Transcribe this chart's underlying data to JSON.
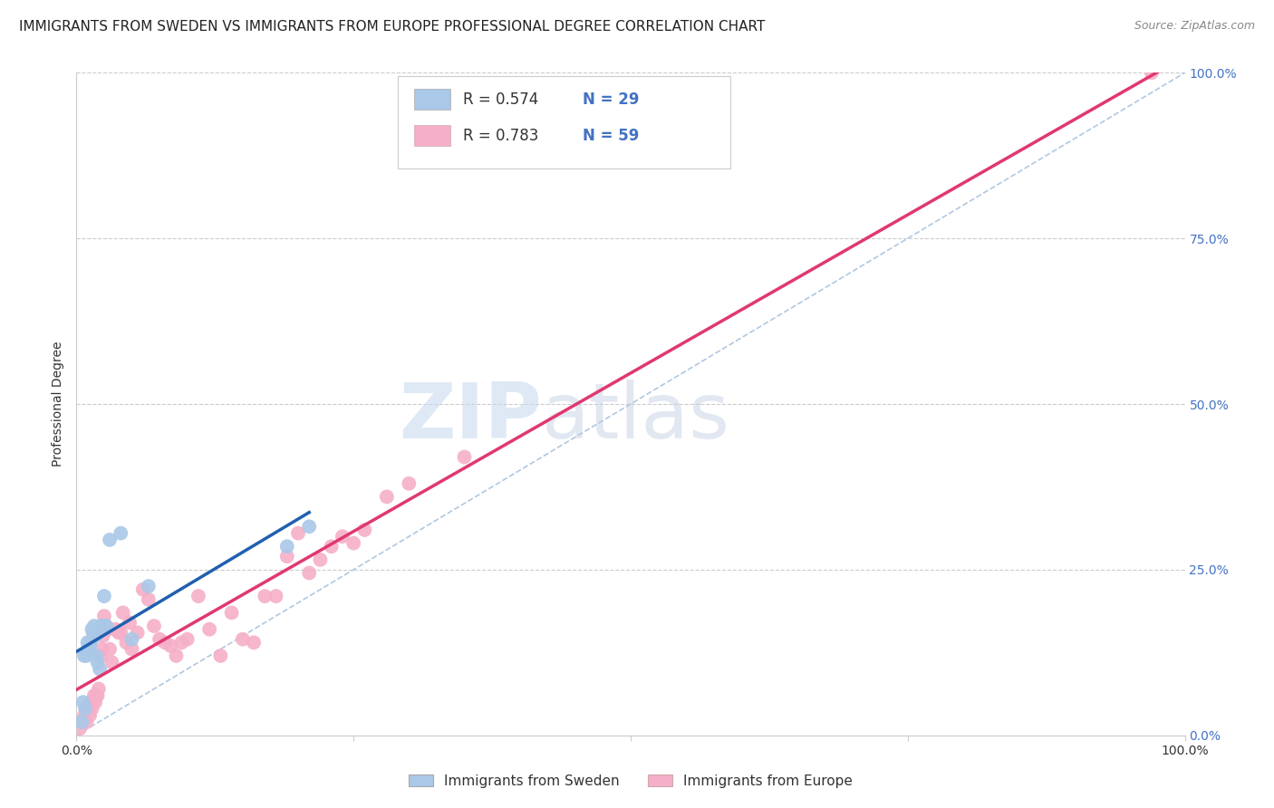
{
  "title": "IMMIGRANTS FROM SWEDEN VS IMMIGRANTS FROM EUROPE PROFESSIONAL DEGREE CORRELATION CHART",
  "source": "Source: ZipAtlas.com",
  "ylabel": "Professional Degree",
  "xlim": [
    0,
    1
  ],
  "ylim": [
    0,
    1
  ],
  "ytick_labels": [
    "0.0%",
    "25.0%",
    "50.0%",
    "75.0%",
    "100.0%"
  ],
  "ytick_positions": [
    0,
    0.25,
    0.5,
    0.75,
    1.0
  ],
  "xtick_positions": [
    0,
    0.25,
    0.5,
    0.75,
    1.0
  ],
  "xtick_labels": [
    "0.0%",
    "",
    "",
    "",
    "100.0%"
  ],
  "watermark_zip": "ZIP",
  "watermark_atlas": "atlas",
  "legend_label1": "Immigrants from Sweden",
  "legend_label2": "Immigrants from Europe",
  "scatter_color1": "#aac8e8",
  "scatter_color2": "#f5afc8",
  "line_color1": "#2060b0",
  "line_color2": "#e03870",
  "diagonal_color": "#b0c8e0",
  "background_color": "#ffffff",
  "grid_color": "#cccccc",
  "right_tick_color": "#4472c4",
  "sweden_x": [
    0.005,
    0.006,
    0.007,
    0.008,
    0.009,
    0.01,
    0.011,
    0.012,
    0.013,
    0.014,
    0.015,
    0.016,
    0.017,
    0.018,
    0.019,
    0.02,
    0.021,
    0.022,
    0.023,
    0.024,
    0.025,
    0.026,
    0.027,
    0.03,
    0.04,
    0.05,
    0.065,
    0.19,
    0.21
  ],
  "sweden_y": [
    0.02,
    0.05,
    0.12,
    0.04,
    0.12,
    0.14,
    0.13,
    0.135,
    0.14,
    0.16,
    0.155,
    0.165,
    0.15,
    0.12,
    0.11,
    0.155,
    0.1,
    0.165,
    0.165,
    0.165,
    0.21,
    0.165,
    0.165,
    0.295,
    0.305,
    0.145,
    0.225,
    0.285,
    0.315
  ],
  "europe_x": [
    0.003,
    0.005,
    0.007,
    0.009,
    0.01,
    0.011,
    0.012,
    0.013,
    0.014,
    0.015,
    0.016,
    0.017,
    0.018,
    0.019,
    0.02,
    0.022,
    0.023,
    0.024,
    0.025,
    0.028,
    0.03,
    0.032,
    0.035,
    0.038,
    0.04,
    0.042,
    0.045,
    0.048,
    0.05,
    0.055,
    0.06,
    0.065,
    0.07,
    0.075,
    0.08,
    0.085,
    0.09,
    0.095,
    0.1,
    0.11,
    0.12,
    0.13,
    0.14,
    0.15,
    0.16,
    0.17,
    0.18,
    0.19,
    0.2,
    0.21,
    0.22,
    0.23,
    0.24,
    0.25,
    0.26,
    0.28,
    0.3,
    0.35,
    0.97
  ],
  "europe_y": [
    0.01,
    0.02,
    0.03,
    0.02,
    0.04,
    0.04,
    0.03,
    0.05,
    0.04,
    0.05,
    0.06,
    0.05,
    0.06,
    0.06,
    0.07,
    0.12,
    0.13,
    0.15,
    0.18,
    0.16,
    0.13,
    0.11,
    0.16,
    0.155,
    0.155,
    0.185,
    0.14,
    0.17,
    0.13,
    0.155,
    0.22,
    0.205,
    0.165,
    0.145,
    0.14,
    0.135,
    0.12,
    0.14,
    0.145,
    0.21,
    0.16,
    0.12,
    0.185,
    0.145,
    0.14,
    0.21,
    0.21,
    0.27,
    0.305,
    0.245,
    0.265,
    0.285,
    0.3,
    0.29,
    0.31,
    0.36,
    0.38,
    0.42,
    1.0
  ],
  "title_fontsize": 11,
  "axis_fontsize": 10,
  "tick_fontsize": 10,
  "source_fontsize": 9,
  "legend_r1": "R = 0.574",
  "legend_n1": "N = 29",
  "legend_r2": "R = 0.783",
  "legend_n2": "N = 59"
}
